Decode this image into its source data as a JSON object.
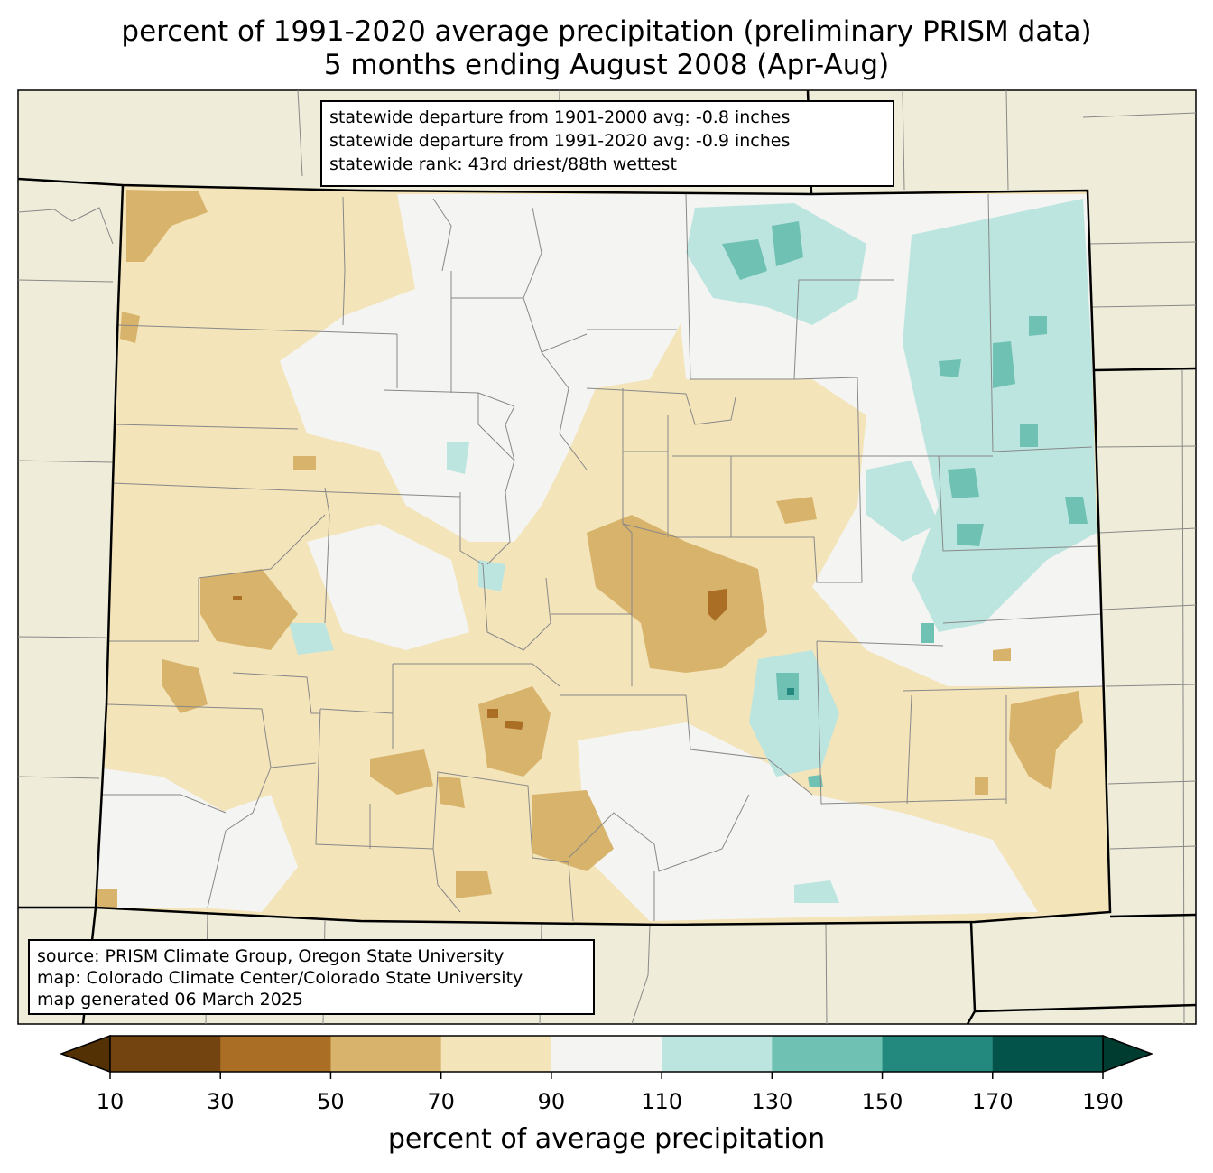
{
  "title": {
    "line1": "percent of 1991-2020 average precipitation (preliminary PRISM data)",
    "line2": "5 months ending August 2008 (Apr-Aug)"
  },
  "stats_box": {
    "line1": "statewide departure from 1901-2000 avg: -0.8 inches",
    "line2": "statewide departure from 1991-2020 avg: -0.9 inches",
    "line3": "statewide rank: 43rd driest/88th wettest"
  },
  "source_box": {
    "line1": "source: PRISM Climate Group, Oregon State University",
    "line2": "map: Colorado Climate Center/Colorado State University",
    "line3": "map generated 06 March 2025"
  },
  "colorbar": {
    "label": "percent of average precipitation",
    "ticks": [
      "10",
      "30",
      "50",
      "70",
      "90",
      "110",
      "130",
      "150",
      "170",
      "190"
    ],
    "colors": [
      "#744410",
      "#aa6e25",
      "#d8b36b",
      "#f3e4ba",
      "#f4f4f2",
      "#bce5df",
      "#6fc1b4",
      "#23897f",
      "#03534a"
    ],
    "under_color": "#543005",
    "over_color": "#003c30"
  },
  "colors": {
    "land_outside": "#efedd9",
    "state_border": "#000000",
    "county_border": "#888888"
  }
}
